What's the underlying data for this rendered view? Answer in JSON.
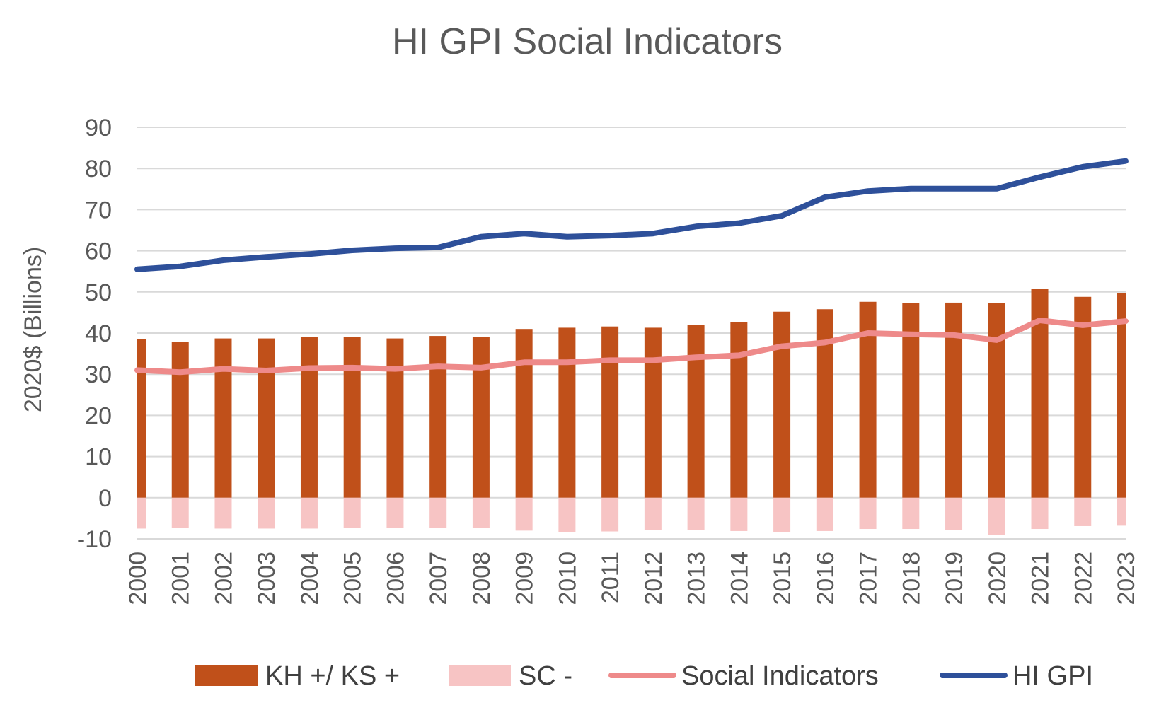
{
  "chart_data": {
    "type": "bar",
    "title": "HI GPI Social Indicators",
    "xlabel": "",
    "ylabel": "2020$ (Billions)",
    "ylim": [
      -10,
      90
    ],
    "yticks": [
      -10,
      0,
      10,
      20,
      30,
      40,
      50,
      60,
      70,
      80,
      90
    ],
    "grid": true,
    "legend_position": "bottom",
    "categories": [
      "2000",
      "2001",
      "2002",
      "2003",
      "2004",
      "2005",
      "2006",
      "2007",
      "2008",
      "2009",
      "2010",
      "2011",
      "2012",
      "2013",
      "2014",
      "2015",
      "2016",
      "2017",
      "2018",
      "2019",
      "2020",
      "2021",
      "2022",
      "2023"
    ],
    "series": [
      {
        "name": "KH +/ KS +",
        "type": "bar",
        "color": "#C0501A",
        "values": [
          38.5,
          37.9,
          38.7,
          38.7,
          39.0,
          39.0,
          38.7,
          39.3,
          39.0,
          41.0,
          41.3,
          41.6,
          41.3,
          42.0,
          42.7,
          45.2,
          45.8,
          47.6,
          47.3,
          47.4,
          47.3,
          50.7,
          48.8,
          49.7
        ]
      },
      {
        "name": "SC -",
        "type": "bar",
        "color": "#F7C4C4",
        "values": [
          -7.5,
          -7.4,
          -7.5,
          -7.5,
          -7.5,
          -7.4,
          -7.4,
          -7.4,
          -7.4,
          -8.0,
          -8.4,
          -8.2,
          -7.9,
          -7.9,
          -8.1,
          -8.4,
          -8.1,
          -7.6,
          -7.6,
          -7.9,
          -9.0,
          -7.6,
          -6.9,
          -6.8
        ]
      },
      {
        "name": "Social Indicators",
        "type": "line",
        "color": "#EE8A8A",
        "values": [
          31.0,
          30.5,
          31.3,
          30.9,
          31.5,
          31.6,
          31.3,
          31.9,
          31.6,
          32.9,
          32.9,
          33.4,
          33.4,
          34.1,
          34.6,
          36.8,
          37.7,
          40.0,
          39.7,
          39.5,
          38.3,
          43.1,
          41.9,
          42.9
        ]
      },
      {
        "name": "HI GPI",
        "type": "line",
        "color": "#2E509A",
        "values": [
          55.5,
          56.2,
          57.7,
          58.5,
          59.2,
          60.1,
          60.6,
          60.8,
          63.4,
          64.2,
          63.4,
          63.7,
          64.2,
          65.9,
          66.7,
          68.5,
          73.0,
          74.5,
          75.1,
          75.1,
          75.1,
          77.9,
          80.4,
          81.8
        ]
      }
    ]
  }
}
